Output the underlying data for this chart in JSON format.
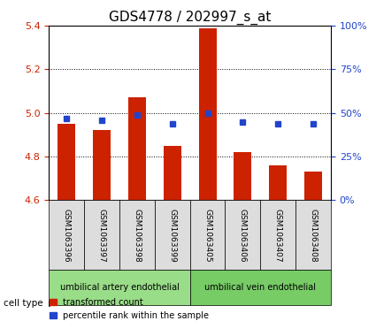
{
  "title": "GDS4778 / 202997_s_at",
  "samples": [
    "GSM1063396",
    "GSM1063397",
    "GSM1063398",
    "GSM1063399",
    "GSM1063405",
    "GSM1063406",
    "GSM1063407",
    "GSM1063408"
  ],
  "transformed_count": [
    4.95,
    4.92,
    5.07,
    4.85,
    5.39,
    4.82,
    4.76,
    4.73
  ],
  "percentile_rank": [
    47,
    46,
    49,
    44,
    50,
    45,
    44,
    44
  ],
  "ylim_left": [
    4.6,
    5.4
  ],
  "ylim_right": [
    0,
    100
  ],
  "yticks_left": [
    4.6,
    4.8,
    5.0,
    5.2,
    5.4
  ],
  "yticks_right": [
    0,
    25,
    50,
    75,
    100
  ],
  "ytick_labels_right": [
    "0%",
    "25%",
    "50%",
    "75%",
    "100%"
  ],
  "bar_color": "#cc2200",
  "dot_color": "#2244cc",
  "bar_bottom": 4.6,
  "groups": [
    {
      "label": "umbilical artery endothelial",
      "start": 0,
      "end": 4,
      "color": "#99dd88"
    },
    {
      "label": "umbilical vein endothelial",
      "start": 4,
      "end": 8,
      "color": "#77cc66"
    }
  ],
  "cell_type_label": "cell type",
  "legend_items": [
    {
      "label": "transformed count",
      "color": "#cc2200",
      "marker": "s"
    },
    {
      "label": "percentile rank within the sample",
      "color": "#2244cc",
      "marker": "s"
    }
  ],
  "title_fontsize": 11,
  "tick_fontsize": 8,
  "label_fontsize": 8,
  "bar_width": 0.5
}
